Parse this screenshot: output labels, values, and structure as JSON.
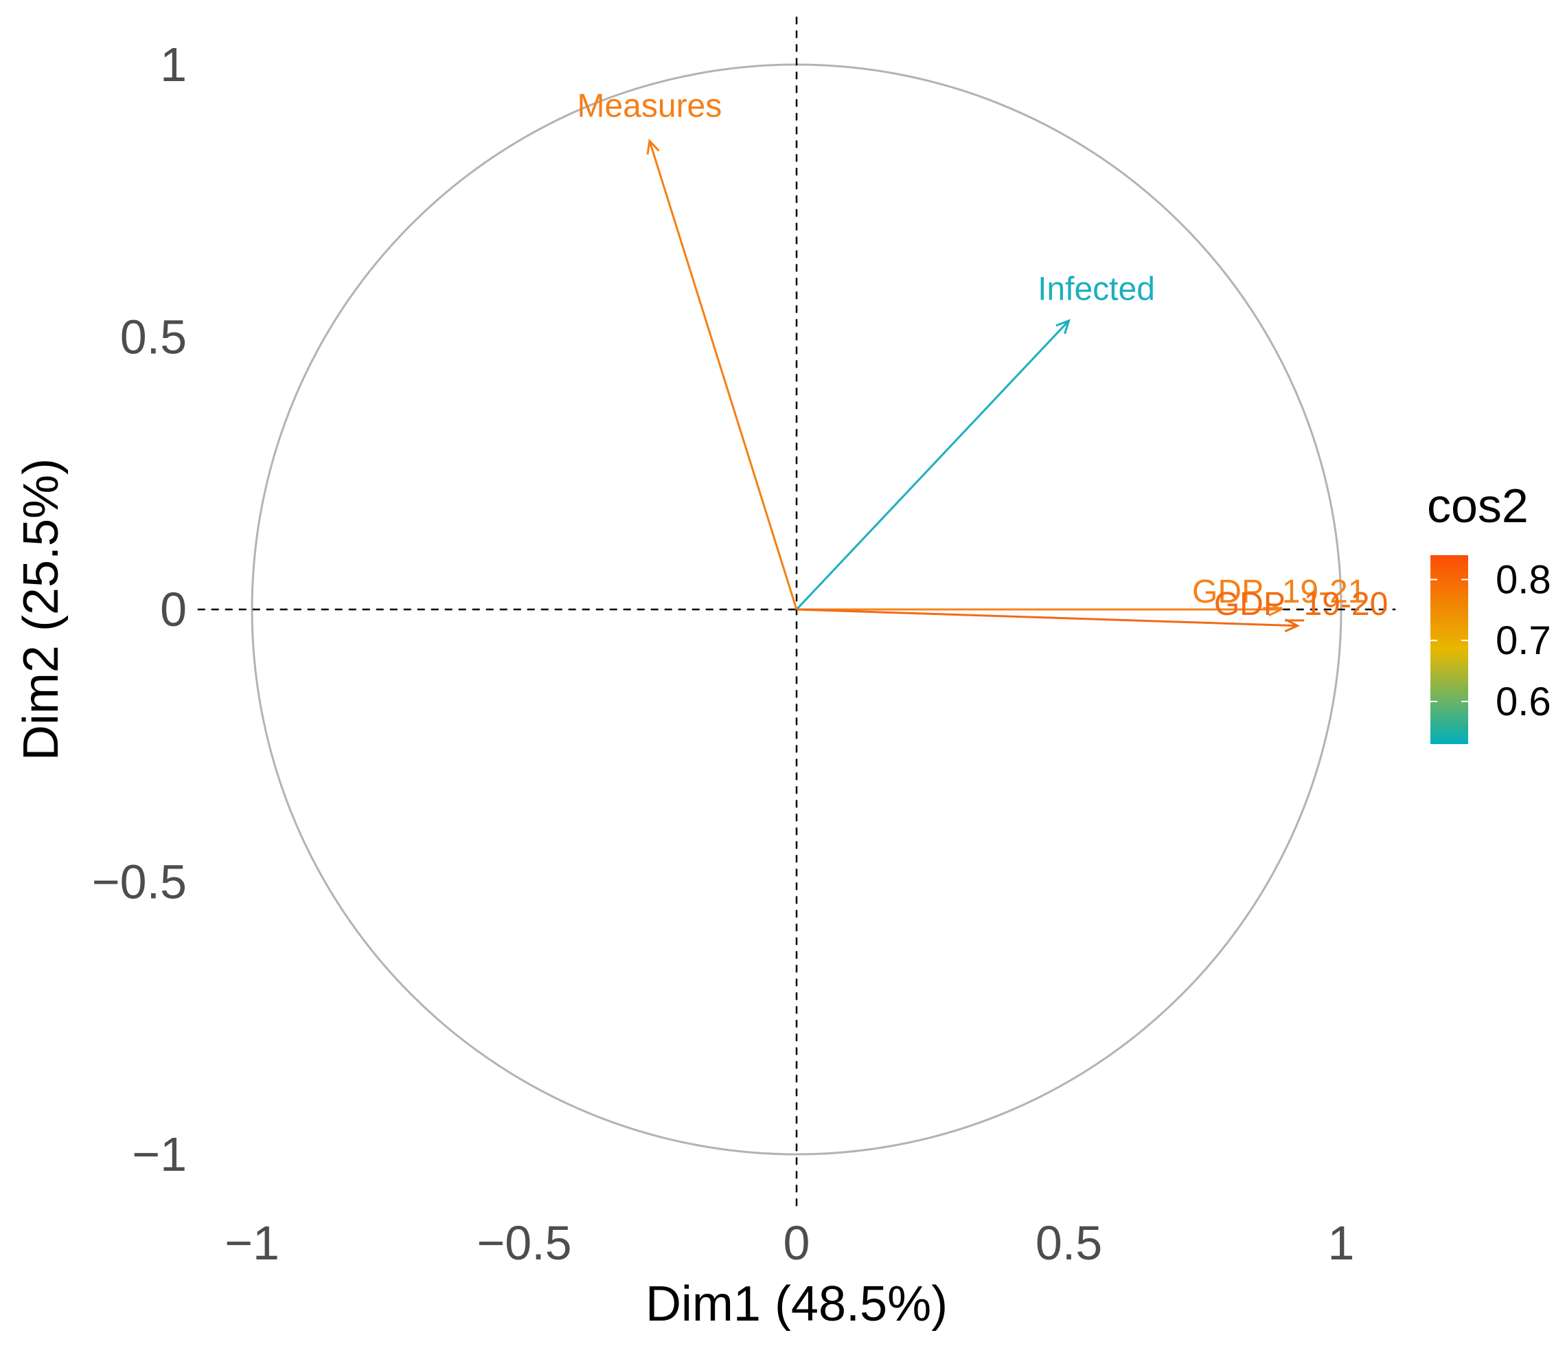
{
  "chart_data": {
    "type": "scatter",
    "subtype": "pca-correlation-circle",
    "title": "",
    "xlabel": "Dim1 (48.5%)",
    "ylabel": "Dim2 (25.5%)",
    "xlim": [
      -1.1,
      1.1
    ],
    "ylim": [
      -1.1,
      1.05
    ],
    "x_ticks": [
      -1,
      -0.5,
      0,
      0.5,
      1
    ],
    "x_tick_labels": [
      "−1",
      "−0.5",
      "0",
      "0.5",
      "1"
    ],
    "y_ticks": [
      1,
      0.5,
      0,
      -0.5,
      -1
    ],
    "y_tick_labels": [
      "1",
      "0.5",
      "0",
      "−0.5",
      "−1"
    ],
    "grid": false,
    "unit_circle": true,
    "reference_lines": [
      "x = 0 (dashed)",
      "y = 0 (dashed)"
    ],
    "variables": [
      {
        "name": "Measures",
        "x": -0.27,
        "y": 0.86,
        "cos2": 0.81,
        "color": "#F57F17"
      },
      {
        "name": "Infected",
        "x": 0.5,
        "y": 0.53,
        "cos2": 0.53,
        "color": "#1CAFBF"
      },
      {
        "name": "GDP_19-21",
        "x": 0.89,
        "y": 0.0,
        "cos2": 0.79,
        "color": "#F5821A"
      },
      {
        "name": "GDP_19-20",
        "x": 0.92,
        "y": -0.03,
        "cos2": 0.84,
        "color": "#F26B13"
      }
    ],
    "legend": {
      "title": "cos2",
      "position": "right",
      "ticks": [
        0.8,
        0.7,
        0.6
      ],
      "tick_labels": [
        "0.8",
        "0.7",
        "0.6"
      ],
      "range": [
        0.53,
        0.84
      ],
      "gradient": [
        "#00AFBB",
        "#E7B800",
        "#FC4E07"
      ]
    }
  }
}
